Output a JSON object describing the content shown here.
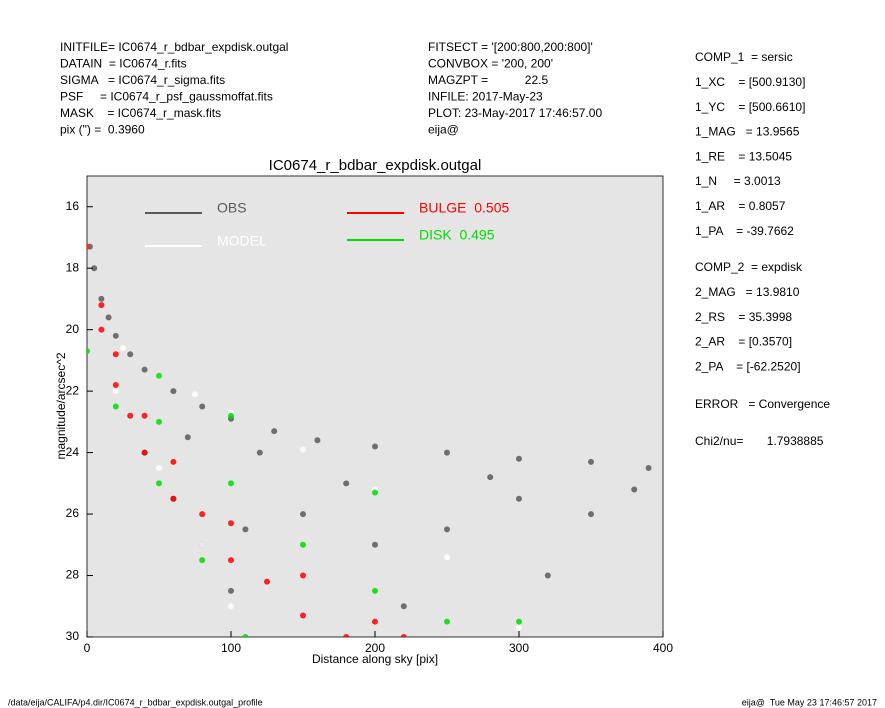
{
  "header": {
    "left": [
      "INITFILE= IC0674_r_bdbar_expdisk.outgal",
      "DATAIN  = IC0674_r.fits",
      "SIGMA   = IC0674_r_sigma.fits",
      "PSF     = IC0674_r_psf_gaussmoffat.fits",
      "MASK    = IC0674_r_mask.fits",
      "pix (\") =  0.3960"
    ],
    "middle": [
      "FITSECT = '[200:800,200:800]'",
      "CONVBOX = '200, 200'",
      "MAGZPT =           22.5",
      "INFILE: 2017-May-23",
      "PLOT: 23-May-2017 17:46:57.00",
      "eija@"
    ]
  },
  "panel": {
    "comp1": [
      "COMP_1  = sersic",
      "1_XC    = [500.9130]",
      "1_YC    = [500.6610]",
      "1_MAG   = 13.9565",
      "1_RE    = 13.5045",
      "1_N     = 3.0013",
      "1_AR    = 0.8057",
      "1_PA    = -39.7662"
    ],
    "comp2": [
      "COMP_2  = expdisk",
      "2_MAG   = 13.9810",
      "2_RS    = 35.3998",
      "2_AR    = [0.3570]",
      "2_PA    = [-62.2520]"
    ],
    "error": "ERROR   = Convergence",
    "chi2": "Chi2/nu=       1.7938885"
  },
  "footer": {
    "left": "/data/eija/CALIFA/p4.dir/IC0674_r_bdbar_expdisk.outgal_profile",
    "right": "eija@  Tue May 23 17:46:57 2017"
  },
  "chart_data": {
    "type": "scatter",
    "title": "IC0674_r_bdbar_expdisk.outgal",
    "x_label": "Distance along sky [pix]",
    "y_label": "magnitude/arcsec^2",
    "xlim": [
      0,
      400
    ],
    "ylim": [
      30,
      15
    ],
    "xticks": [
      0,
      100,
      200,
      300,
      400
    ],
    "yticks": [
      16,
      18,
      20,
      22,
      24,
      26,
      28,
      30
    ],
    "grid": false,
    "background": "#e5e5e5",
    "series": [
      {
        "name": "OBS",
        "color": "#5a5a5a",
        "x": [
          2,
          5,
          10,
          15,
          20,
          30,
          40,
          60,
          80,
          100,
          130,
          160,
          200,
          250,
          300,
          350,
          390,
          40,
          60,
          80,
          100,
          150,
          200,
          250,
          300,
          350,
          120,
          180,
          280,
          380,
          220,
          320,
          70,
          110
        ],
        "y": [
          17.3,
          18,
          19,
          19.6,
          20.2,
          20.8,
          21.3,
          22,
          22.5,
          22.9,
          23.3,
          23.6,
          23.8,
          24,
          24.2,
          24.3,
          24.5,
          24,
          25.5,
          27,
          28.5,
          26,
          27,
          26.5,
          25.5,
          26,
          24,
          25,
          24.8,
          25.2,
          29,
          28,
          23.5,
          26.5
        ]
      },
      {
        "name": "MODEL",
        "color": "#ffffff",
        "x": [
          0,
          25,
          50,
          75,
          100,
          150,
          200,
          250,
          300,
          20,
          50,
          80,
          100
        ],
        "y": [
          17.3,
          20.6,
          21.5,
          22.1,
          22.7,
          23.9,
          25.2,
          27.4,
          29.7,
          22,
          24.5,
          27,
          29
        ]
      },
      {
        "name": "BULGE  0.505",
        "color": "#ff0000",
        "x": [
          0,
          10,
          20,
          40,
          60,
          100,
          150,
          200,
          220,
          10,
          20,
          40,
          60,
          100,
          150,
          180,
          30,
          80,
          125
        ],
        "y": [
          17.3,
          19.2,
          20.8,
          22.8,
          24.3,
          26.3,
          28,
          29.5,
          30,
          20,
          21.8,
          24,
          25.5,
          27.5,
          29.3,
          30,
          22.8,
          26,
          28.2
        ]
      },
      {
        "name": "DISK  0.495",
        "color": "#00dd00",
        "x": [
          0,
          50,
          100,
          200,
          300,
          20,
          50,
          80,
          110,
          50,
          100,
          150,
          200,
          250
        ],
        "y": [
          20.7,
          21.5,
          22.8,
          25.3,
          29.5,
          22.5,
          25,
          27.5,
          30,
          23,
          25,
          27,
          28.5,
          29.5
        ]
      }
    ]
  }
}
